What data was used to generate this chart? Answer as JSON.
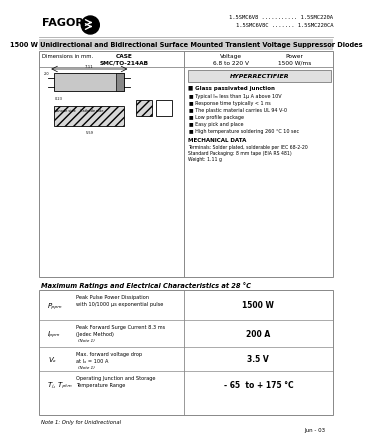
{
  "bg_color": "#ffffff",
  "header_text_fagor": "FAGOR",
  "part_numbers_line1": "1.5SMC6V8 ........... 1.5SMC220A",
  "part_numbers_line2": "1.5SMC6V8C ....... 1.5SMC220CA",
  "title_bar_text": "1500 W Unidirectional and Bidirectional Surface Mounted Transient Voltage Suppressor Diodes",
  "title_bar_bg": "#d0d0d0",
  "features_title": "Glass passivated junction",
  "features": [
    "Typical Iₘ less than 1μ A above 10V",
    "Response time typically < 1 ns",
    "The plastic material carries UL 94 V-0",
    "Low profile package",
    "Easy pick and place",
    "High temperature soldering 260 °C 10 sec"
  ],
  "mech_title": "MECHANICAL DATA",
  "mech_lines": [
    "Terminals: Solder plated, solderable per IEC 68-2-20",
    "Standard Packaging: 8 mm tape (EIA RS 481)",
    "Weight: 1.11 g"
  ],
  "table_title": "Maximum Ratings and Electrical Characteristics at 28 °C",
  "table_rows": [
    {
      "symbol": "Pₚₚₘ",
      "desc1": "Peak Pulse Power Dissipation",
      "desc2": "with 10/1000 μs exponential pulse",
      "note": "",
      "value": "1500 W"
    },
    {
      "symbol": "Iₚₚₘ",
      "desc1": "Peak Forward Surge Current 8.3 ms",
      "desc2": "(Jedec Method)",
      "note": "(Note 1)",
      "value": "200 A"
    },
    {
      "symbol": "Vₔ",
      "desc1": "Max. forward voltage drop",
      "desc2": "at Iₔ = 100 A",
      "note": "(Note 1)",
      "value": "3.5 V"
    },
    {
      "symbol": "Tⱼ, Tₚₜₘ",
      "desc1": "Operating Junction and Storage",
      "desc2": "Temperature Range",
      "note": "",
      "value": "- 65  to + 175 °C"
    }
  ],
  "note1": "Note 1: Only for Unidirectional",
  "date_text": "Jun - 03",
  "hyperrectifier_text": "HYPERRECTIFIER",
  "case_text": "CASE\nSMC/TO-214AB",
  "voltage_text": "Voltage\n6.8 to 220 V",
  "power_text": "Power\n1500 W/ms",
  "dim_text": "Dimensions in mm."
}
